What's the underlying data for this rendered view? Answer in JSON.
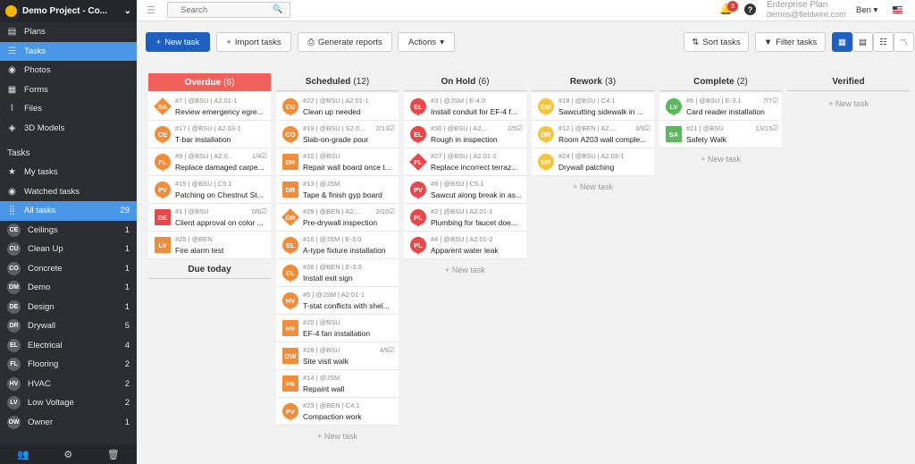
{
  "sidebar": {
    "project": "Demo Project - Co...",
    "nav": [
      {
        "label": "Plans",
        "icon": "plans-icon",
        "glyph": "▤"
      },
      {
        "label": "Tasks",
        "icon": "tasks-icon",
        "glyph": "☰",
        "active": true
      },
      {
        "label": "Photos",
        "icon": "camera-icon",
        "glyph": "◉"
      },
      {
        "label": "Forms",
        "icon": "forms-icon",
        "glyph": "▦"
      },
      {
        "label": "Files",
        "icon": "paperclip-icon",
        "glyph": "⌇"
      },
      {
        "label": "3D Models",
        "icon": "cube-icon",
        "glyph": "◈"
      }
    ],
    "tasks_heading": "Tasks",
    "task_filters": [
      {
        "label": "My tasks",
        "icon": "star-icon",
        "glyph": "★"
      },
      {
        "label": "Watched tasks",
        "icon": "eye-icon",
        "glyph": "◉"
      },
      {
        "label": "All tasks",
        "icon": "grid-icon",
        "glyph": "⣿",
        "count": "29",
        "active": true
      }
    ],
    "categories": [
      {
        "abbr": "CE",
        "label": "Ceilings",
        "count": "1"
      },
      {
        "abbr": "CU",
        "label": "Clean Up",
        "count": "1"
      },
      {
        "abbr": "CO",
        "label": "Concrete",
        "count": "1"
      },
      {
        "abbr": "DM",
        "label": "Demo",
        "count": "1"
      },
      {
        "abbr": "DE",
        "label": "Design",
        "count": "1"
      },
      {
        "abbr": "DR",
        "label": "Drywall",
        "count": "5"
      },
      {
        "abbr": "EL",
        "label": "Electrical",
        "count": "4"
      },
      {
        "abbr": "FL",
        "label": "Flooring",
        "count": "2"
      },
      {
        "abbr": "HV",
        "label": "HVAC",
        "count": "2"
      },
      {
        "abbr": "LV",
        "label": "Low Voltage",
        "count": "2"
      },
      {
        "abbr": "OW",
        "label": "Owner",
        "count": "1"
      }
    ]
  },
  "topbar": {
    "search_placeholder": "Search",
    "notification_count": "3",
    "plan_name": "Enterprise Plan",
    "plan_email": "demos@fieldwire.com",
    "user": "Ben"
  },
  "toolbar": {
    "new_task": "New task",
    "import_tasks": "Import tasks",
    "generate_reports": "Generate reports",
    "actions": "Actions",
    "sort_tasks": "Sort tasks",
    "filter_tasks": "Filter tasks"
  },
  "colors": {
    "orange": "#f08c3a",
    "red": "#e8484a",
    "yellow": "#f5c542",
    "green": "#5cb85c",
    "overdue": "#f2605b",
    "primary": "#1f5fbf"
  },
  "new_task_label": "+ New task",
  "due_today": "Due today",
  "columns": [
    {
      "name": "Overdue",
      "count": "(6)",
      "overdue": true,
      "cards": [
        {
          "abbr": "SA",
          "shape": "diamond",
          "color": "orange",
          "meta": "#7 | @BSU | A2.01-1",
          "title": "Review emergency egre...",
          "progress": ""
        },
        {
          "abbr": "CE",
          "shape": "pin",
          "color": "orange",
          "meta": "#17 | @BSU | A2.03-1",
          "title": "T-bar installation",
          "progress": ""
        },
        {
          "abbr": "FL",
          "shape": "pin",
          "color": "orange",
          "meta": "#9 | @BSU | A2.0...",
          "title": "Replace damaged carpe...",
          "progress": "1/4☑"
        },
        {
          "abbr": "PV",
          "shape": "pin",
          "color": "orange",
          "meta": "#15 | @BSU | C5.1",
          "title": "Patching on Chestnut St...",
          "progress": ""
        },
        {
          "abbr": "DE",
          "shape": "square",
          "color": "red",
          "meta": "#1 | @BSU",
          "title": "Client approval on color ...",
          "progress": "0/6☑"
        },
        {
          "abbr": "LV",
          "shape": "square",
          "color": "orange",
          "meta": "#25 | @BEN",
          "title": "Fire alarm test",
          "progress": ""
        }
      ]
    },
    {
      "name": "Scheduled",
      "count": "(12)",
      "cards": [
        {
          "abbr": "CU",
          "shape": "pin",
          "color": "orange",
          "meta": "#22 | @BSU | A2.01-1",
          "title": "Clean up needed",
          "progress": ""
        },
        {
          "abbr": "CO",
          "shape": "pin",
          "color": "orange",
          "meta": "#19 | @BSU | S2.0...",
          "title": "Slab-on-grade pour",
          "progress": "2/13☑"
        },
        {
          "abbr": "DR",
          "shape": "square",
          "color": "orange",
          "meta": "#10 | @BSU",
          "title": "Repair wall board once t...",
          "progress": ""
        },
        {
          "abbr": "DR",
          "shape": "square",
          "color": "orange",
          "meta": "#13 | @JSM",
          "title": "Tape & finish gyp board",
          "progress": ""
        },
        {
          "abbr": "DR",
          "shape": "diamond",
          "color": "orange",
          "meta": "#29 | @BEN | A2....",
          "title": "Pre-drywall inspection",
          "progress": "2/10☑"
        },
        {
          "abbr": "EL",
          "shape": "pin",
          "color": "orange",
          "meta": "#16 | @JSM | E-3.0",
          "title": "A-type fixture installation",
          "progress": ""
        },
        {
          "abbr": "EL",
          "shape": "pin",
          "color": "orange",
          "meta": "#26 | @BEN | E-3.0",
          "title": "Install exit sign",
          "progress": ""
        },
        {
          "abbr": "HV",
          "shape": "pin",
          "color": "orange",
          "meta": "#5 | @JSM | A2.01-1",
          "title": "T-stat conflicts with shel...",
          "progress": ""
        },
        {
          "abbr": "HV",
          "shape": "square",
          "color": "orange",
          "meta": "#20 | @BSU",
          "title": "EF-4 fan installation",
          "progress": ""
        },
        {
          "abbr": "OW",
          "shape": "square",
          "color": "orange",
          "meta": "#28 | @BSU",
          "title": "Site visit walk",
          "progress": "4/6☑"
        },
        {
          "abbr": "PA",
          "shape": "square",
          "color": "orange",
          "meta": "#14 | @JSM",
          "title": "Repaint wall",
          "progress": ""
        },
        {
          "abbr": "PV",
          "shape": "pin",
          "color": "orange",
          "meta": "#23 | @BEN | C4.1",
          "title": "Compaction work",
          "progress": ""
        }
      ]
    },
    {
      "name": "On Hold",
      "count": "(6)",
      "cards": [
        {
          "abbr": "EL",
          "shape": "pin",
          "color": "red",
          "meta": "#3 | @JSM | E-4.0",
          "title": "Install conduit for EF-4 f...",
          "progress": ""
        },
        {
          "abbr": "EL",
          "shape": "pin",
          "color": "red",
          "meta": "#30 | @BSU | A2....",
          "title": "Rough in inspection",
          "progress": "2/5☑"
        },
        {
          "abbr": "FL",
          "shape": "diamond",
          "color": "red",
          "meta": "#27 | @BSU | A2.01-2",
          "title": "Replace incorrect terraz...",
          "progress": ""
        },
        {
          "abbr": "PV",
          "shape": "pin",
          "color": "red",
          "meta": "#8 | @BSU | C5.1",
          "title": "Sawcut along break in as...",
          "progress": ""
        },
        {
          "abbr": "PL",
          "shape": "pin",
          "color": "red",
          "meta": "#2 | @BSU | A2.01-1",
          "title": "Plumbing for faucet doe...",
          "progress": ""
        },
        {
          "abbr": "PL",
          "shape": "pin",
          "color": "red",
          "meta": "#4 | @BSU | A2.01-2",
          "title": "Apparent water leak",
          "progress": ""
        }
      ]
    },
    {
      "name": "Rework",
      "count": "(3)",
      "cards": [
        {
          "abbr": "DM",
          "shape": "pin",
          "color": "yellow",
          "meta": "#18 | @BSU | C4.1",
          "title": "Sawcutting sidewalk in ...",
          "progress": ""
        },
        {
          "abbr": "DR",
          "shape": "pin",
          "color": "yellow",
          "meta": "#12 | @BEN | A2....",
          "title": "Room A203 wall comple...",
          "progress": "3/9☑"
        },
        {
          "abbr": "DR",
          "shape": "pin",
          "color": "yellow",
          "meta": "#24 | @BSU | A2.03-1",
          "title": "Drywall patching",
          "progress": ""
        }
      ]
    },
    {
      "name": "Complete",
      "count": "(2)",
      "cards": [
        {
          "abbr": "LV",
          "shape": "pin",
          "color": "green",
          "meta": "#6 | @BSU | E-3.1",
          "title": "Card reader installation",
          "progress": "7/7☑"
        },
        {
          "abbr": "SA",
          "shape": "square",
          "color": "green",
          "meta": "#21 | @BSU",
          "title": "Safety Walk",
          "progress": "13/15☑"
        }
      ]
    },
    {
      "name": "Verified",
      "count": "",
      "cards": []
    }
  ]
}
